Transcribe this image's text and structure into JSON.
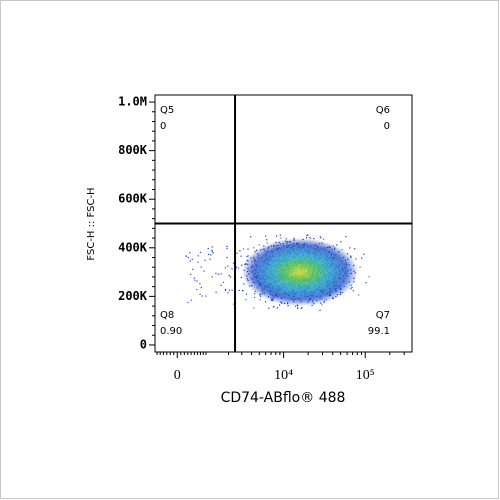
{
  "chart_data": {
    "type": "quadrant-density",
    "x_label": "CD74-ABflo® 488",
    "y_label": "FSC-H :: FSC-H",
    "x_scale": "arcsinh",
    "xlim": [
      -670,
      374000
    ],
    "xticks": [
      {
        "value": 0,
        "label": "0"
      },
      {
        "value": 10000,
        "label": "10⁴"
      },
      {
        "value": 100000,
        "label": "10⁵"
      }
    ],
    "ylim": [
      -29000,
      1029000
    ],
    "yticks": [
      {
        "value": 0,
        "label": "0"
      },
      {
        "value": 200000,
        "label": "200K"
      },
      {
        "value": 400000,
        "label": "400K"
      },
      {
        "value": 600000,
        "label": "600K"
      },
      {
        "value": 800000,
        "label": "800K"
      },
      {
        "value": 1000000,
        "label": "1.0M"
      }
    ],
    "gate": {
      "x": 2450,
      "y": 500000
    },
    "quadrants": [
      {
        "name": "Q5",
        "value": 0,
        "position": "top-left"
      },
      {
        "name": "Q6",
        "value": 0,
        "position": "top-right"
      },
      {
        "name": "Q7",
        "value": 99.1,
        "position": "bottom-right"
      },
      {
        "name": "Q8",
        "value": 0.9,
        "value_label": "0.90",
        "position": "bottom-left"
      }
    ]
  }
}
